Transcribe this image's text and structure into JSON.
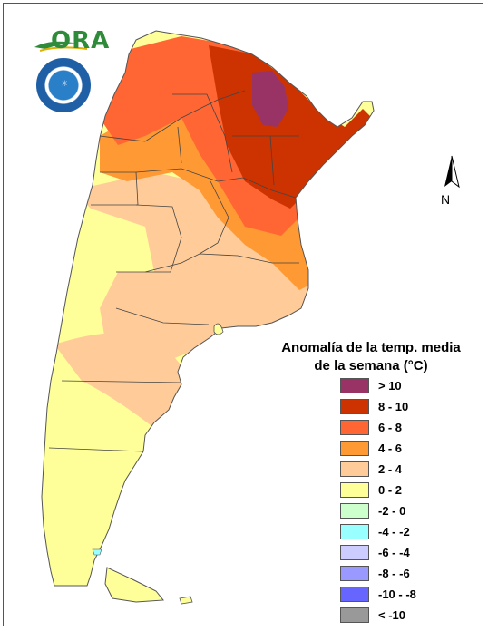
{
  "logo": {
    "text": "ORA"
  },
  "compass": {
    "north_label": "N"
  },
  "legend": {
    "title_line1": "Anomalía de la temp. media",
    "title_line2": "de la semana (°C)",
    "items": [
      {
        "label": "> 10",
        "color": "#993366"
      },
      {
        "label": "8 - 10",
        "color": "#cc3300"
      },
      {
        "label": "6 - 8",
        "color": "#ff6633"
      },
      {
        "label": "4 - 6",
        "color": "#ff9933"
      },
      {
        "label": "2 - 4",
        "color": "#ffcc99"
      },
      {
        "label": "0 - 2",
        "color": "#ffff99"
      },
      {
        "label": "-2 - 0",
        "color": "#ccffcc"
      },
      {
        "label": "-4 - -2",
        "color": "#99ffff"
      },
      {
        "label": "-6 - -4",
        "color": "#ccccff"
      },
      {
        "label": "-8 - -6",
        "color": "#9999ff"
      },
      {
        "label": "-10 - -8",
        "color": "#6666ff"
      },
      {
        "label": "< -10",
        "color": "#999999"
      }
    ]
  }
}
